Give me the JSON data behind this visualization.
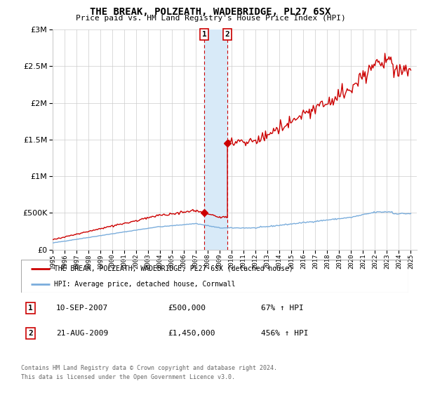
{
  "title": "THE BREAK, POLZEATH, WADEBRIDGE, PL27 6SX",
  "subtitle": "Price paid vs. HM Land Registry's House Price Index (HPI)",
  "legend_line1": "THE BREAK, POLZEATH, WADEBRIDGE, PL27 6SX (detached house)",
  "legend_line2": "HPI: Average price, detached house, Cornwall",
  "footnote1": "Contains HM Land Registry data © Crown copyright and database right 2024.",
  "footnote2": "This data is licensed under the Open Government Licence v3.0.",
  "transaction1_label": "1",
  "transaction1_date": "10-SEP-2007",
  "transaction1_price": "£500,000",
  "transaction1_hpi": "67% ↑ HPI",
  "transaction2_label": "2",
  "transaction2_date": "21-AUG-2009",
  "transaction2_price": "£1,450,000",
  "transaction2_hpi": "456% ↑ HPI",
  "sale1_year": 2007.69,
  "sale1_price": 500000,
  "sale2_year": 2009.64,
  "sale2_price": 1450000,
  "red_color": "#cc0000",
  "blue_color": "#7aaddc",
  "shade_color": "#d8eaf8",
  "ylim": [
    0,
    3000000
  ],
  "xlim_start": 1995.0,
  "xlim_end": 2025.5,
  "hpi_x": [
    1995.0,
    1995.08,
    1995.17,
    1995.25,
    1995.33,
    1995.42,
    1995.5,
    1995.58,
    1995.67,
    1995.75,
    1995.83,
    1995.92,
    1996.0,
    1996.08,
    1996.17,
    1996.25,
    1996.33,
    1996.42,
    1996.5,
    1996.58,
    1996.67,
    1996.75,
    1996.83,
    1996.92,
    1997.0,
    1997.08,
    1997.17,
    1997.25,
    1997.33,
    1997.42,
    1997.5,
    1997.58,
    1997.67,
    1997.75,
    1997.83,
    1997.92,
    1998.0,
    1998.08,
    1998.17,
    1998.25,
    1998.33,
    1998.42,
    1998.5,
    1998.58,
    1998.67,
    1998.75,
    1998.83,
    1998.92,
    1999.0,
    1999.08,
    1999.17,
    1999.25,
    1999.33,
    1999.42,
    1999.5,
    1999.58,
    1999.67,
    1999.75,
    1999.83,
    1999.92,
    2000.0,
    2000.08,
    2000.17,
    2000.25,
    2000.33,
    2000.42,
    2000.5,
    2000.58,
    2000.67,
    2000.75,
    2000.83,
    2000.92,
    2001.0,
    2001.08,
    2001.17,
    2001.25,
    2001.33,
    2001.42,
    2001.5,
    2001.58,
    2001.67,
    2001.75,
    2001.83,
    2001.92,
    2002.0,
    2002.08,
    2002.17,
    2002.25,
    2002.33,
    2002.42,
    2002.5,
    2002.58,
    2002.67,
    2002.75,
    2002.83,
    2002.92,
    2003.0,
    2003.08,
    2003.17,
    2003.25,
    2003.33,
    2003.42,
    2003.5,
    2003.58,
    2003.67,
    2003.75,
    2003.83,
    2003.92,
    2004.0,
    2004.08,
    2004.17,
    2004.25,
    2004.33,
    2004.42,
    2004.5,
    2004.58,
    2004.67,
    2004.75,
    2004.83,
    2004.92,
    2005.0,
    2005.08,
    2005.17,
    2005.25,
    2005.33,
    2005.42,
    2005.5,
    2005.58,
    2005.67,
    2005.75,
    2005.83,
    2005.92,
    2006.0,
    2006.08,
    2006.17,
    2006.25,
    2006.33,
    2006.42,
    2006.5,
    2006.58,
    2006.67,
    2006.75,
    2006.83,
    2006.92,
    2007.0,
    2007.08,
    2007.17,
    2007.25,
    2007.33,
    2007.42,
    2007.5,
    2007.58,
    2007.67,
    2007.75,
    2007.83,
    2007.92,
    2008.0,
    2008.08,
    2008.17,
    2008.25,
    2008.33,
    2008.42,
    2008.5,
    2008.58,
    2008.67,
    2008.75,
    2008.83,
    2008.92,
    2009.0,
    2009.08,
    2009.17,
    2009.25,
    2009.33,
    2009.42,
    2009.5,
    2009.58,
    2009.67,
    2009.75,
    2009.83,
    2009.92,
    2010.0,
    2010.08,
    2010.17,
    2010.25,
    2010.33,
    2010.42,
    2010.5,
    2010.58,
    2010.67,
    2010.75,
    2010.83,
    2010.92,
    2011.0,
    2011.08,
    2011.17,
    2011.25,
    2011.33,
    2011.42,
    2011.5,
    2011.58,
    2011.67,
    2011.75,
    2011.83,
    2011.92,
    2012.0,
    2012.08,
    2012.17,
    2012.25,
    2012.33,
    2012.42,
    2012.5,
    2012.58,
    2012.67,
    2012.75,
    2012.83,
    2012.92,
    2013.0,
    2013.08,
    2013.17,
    2013.25,
    2013.33,
    2013.42,
    2013.5,
    2013.58,
    2013.67,
    2013.75,
    2013.83,
    2013.92,
    2014.0,
    2014.08,
    2014.17,
    2014.25,
    2014.33,
    2014.42,
    2014.5,
    2014.58,
    2014.67,
    2014.75,
    2014.83,
    2014.92,
    2015.0,
    2015.08,
    2015.17,
    2015.25,
    2015.33,
    2015.42,
    2015.5,
    2015.58,
    2015.67,
    2015.75,
    2015.83,
    2015.92,
    2016.0,
    2016.08,
    2016.17,
    2016.25,
    2016.33,
    2016.42,
    2016.5,
    2016.58,
    2016.67,
    2016.75,
    2016.83,
    2016.92,
    2017.0,
    2017.08,
    2017.17,
    2017.25,
    2017.33,
    2017.42,
    2017.5,
    2017.58,
    2017.67,
    2017.75,
    2017.83,
    2017.92,
    2018.0,
    2018.08,
    2018.17,
    2018.25,
    2018.33,
    2018.42,
    2018.5,
    2018.58,
    2018.67,
    2018.75,
    2018.83,
    2018.92,
    2019.0,
    2019.08,
    2019.17,
    2019.25,
    2019.33,
    2019.42,
    2019.5,
    2019.58,
    2019.67,
    2019.75,
    2019.83,
    2019.92,
    2020.0,
    2020.08,
    2020.17,
    2020.25,
    2020.33,
    2020.42,
    2020.5,
    2020.58,
    2020.67,
    2020.75,
    2020.83,
    2020.92,
    2021.0,
    2021.08,
    2021.17,
    2021.25,
    2021.33,
    2021.42,
    2021.5,
    2021.58,
    2021.67,
    2021.75,
    2021.83,
    2021.92,
    2022.0,
    2022.08,
    2022.17,
    2022.25,
    2022.33,
    2022.42,
    2022.5,
    2022.58,
    2022.67,
    2022.75,
    2022.83,
    2022.92,
    2023.0,
    2023.08,
    2023.17,
    2023.25,
    2023.33,
    2023.42,
    2023.5,
    2023.58,
    2023.67,
    2023.75,
    2023.83,
    2023.92,
    2024.0,
    2024.08,
    2024.17,
    2024.25,
    2024.33,
    2024.42,
    2024.5,
    2024.58,
    2024.67,
    2024.75,
    2024.83,
    2024.92,
    2025.0
  ],
  "prop_sale_years": [
    2007.69,
    2009.64
  ],
  "prop_sale_prices": [
    500000,
    1450000
  ]
}
